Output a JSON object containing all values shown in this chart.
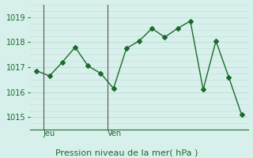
{
  "title": "Pression niveau de la mer( hPa )",
  "background_color": "#d8f0ec",
  "line_color": "#1a6b2a",
  "grid_color": "#c0dcd8",
  "ylim": [
    1014.5,
    1019.5
  ],
  "yticks": [
    1015,
    1016,
    1017,
    1018,
    1019
  ],
  "x_values": [
    0,
    1,
    2,
    3,
    4,
    5,
    6,
    7,
    8,
    9,
    10,
    11,
    12,
    13,
    14,
    15,
    16
  ],
  "y_values": [
    1016.85,
    1016.65,
    1017.2,
    1017.8,
    1017.05,
    1016.75,
    1016.15,
    1017.75,
    1018.05,
    1018.55,
    1018.2,
    1018.55,
    1018.85,
    1016.1,
    1018.05,
    1016.6,
    1015.1
  ],
  "day_labels": [
    [
      "Jeu",
      0.5
    ],
    [
      "Ven",
      5.5
    ]
  ],
  "title_fontsize": 8,
  "tick_fontsize": 7,
  "day_label_fontsize": 7
}
